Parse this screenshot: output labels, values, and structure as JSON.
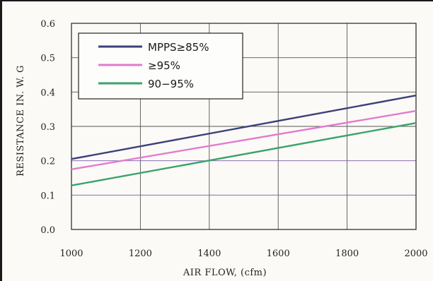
{
  "chart_data": {
    "type": "line",
    "title": "",
    "xlabel": "AIR FLOW, (cfm)",
    "ylabel": "RESISTANCE IN. W. G",
    "xlim": [
      1000,
      2000
    ],
    "ylim": [
      0.0,
      0.6
    ],
    "x_ticks": [
      "1000",
      "1200",
      "1400",
      "1600",
      "1800",
      "2000"
    ],
    "y_ticks": [
      "0.0",
      "0.1",
      "0.2",
      "0.3",
      "0.4",
      "0.5",
      "0.6"
    ],
    "grid": true,
    "legend_placement": "top-left",
    "series": [
      {
        "name": "MPPS≥85%",
        "color": "#3d3f78",
        "x": [
          1000,
          2000
        ],
        "values": [
          0.205,
          0.39
        ]
      },
      {
        "name": "≥95%",
        "color": "#e27bd0",
        "x": [
          1000,
          2000
        ],
        "values": [
          0.175,
          0.345
        ]
      },
      {
        "name": "90−95%",
        "color": "#3aa46a",
        "x": [
          1000,
          2000
        ],
        "values": [
          0.128,
          0.31
        ]
      }
    ]
  }
}
